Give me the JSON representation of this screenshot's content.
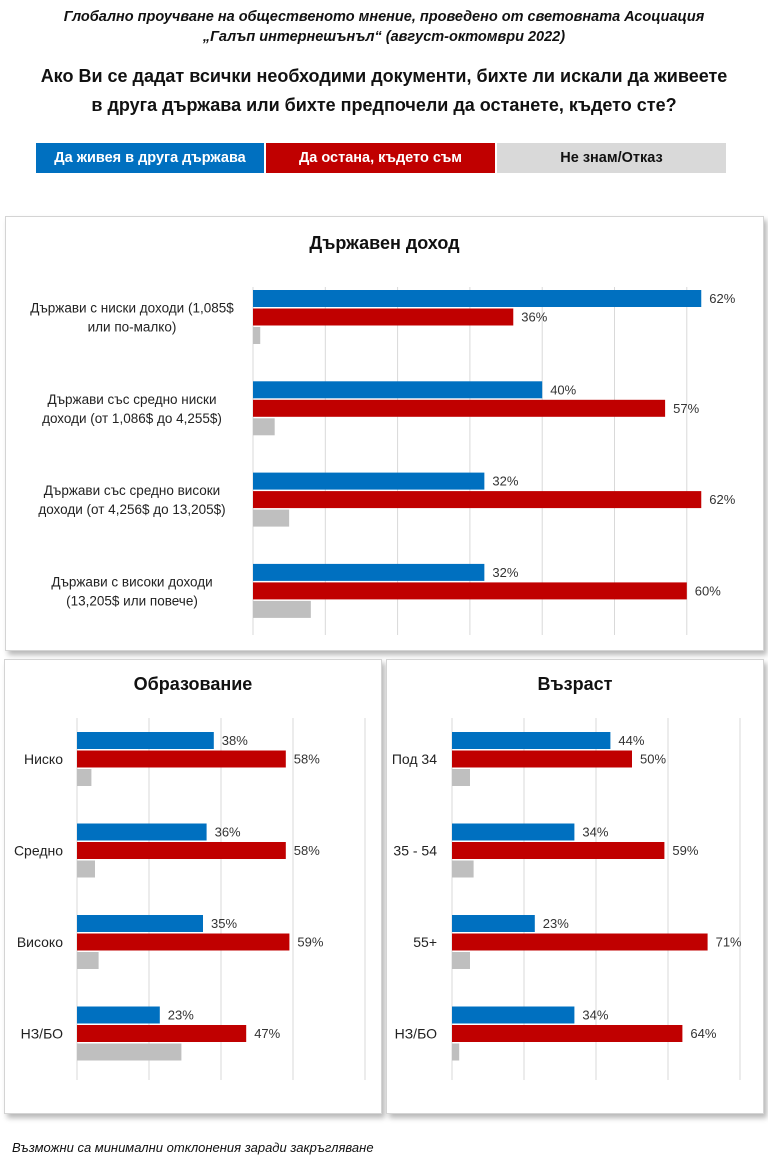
{
  "header": {
    "subtitle_line1": "Глобално проучване на общественото мнение, проведено от световната Асоциация",
    "subtitle_line2": "„Галъп интернешънъл“ (август-октомври 2022)",
    "question_line1": "Ако Ви се дадат всички необходими документи, бихте ли искали да живеете",
    "question_line2": "в друга държава или бихте предпочели да останете, където сте?"
  },
  "legend": [
    {
      "label": "Да живея в друга държава",
      "color": "#0070C0"
    },
    {
      "label": "Да остана, където съм",
      "color": "#C00000"
    },
    {
      "label": "Не знам/Отказ",
      "color": "#C8C8C8"
    }
  ],
  "colors": {
    "blue": "#0070C0",
    "red": "#C00000",
    "gray": "#BFBFBF",
    "grid": "#D9D9D9"
  },
  "footnote": "Възможни са минимални отклонения заради закръгляване",
  "chart_data": [
    {
      "type": "bar",
      "orientation": "horizontal",
      "title": "Държавен доход",
      "categories": [
        [
          "Държави с ниски доходи (1,085$",
          "или по-малко)"
        ],
        [
          "Държави със средно ниски",
          "доходи (от 1,086$ до 4,255$)"
        ],
        [
          "Държави със средно високи",
          "доходи (от 4,256$ до 13,205$)"
        ],
        [
          "Държави с високи доходи",
          "(13,205$ или повече)"
        ]
      ],
      "series": [
        {
          "name": "Да живея в друга държава",
          "values": [
            62,
            40,
            32,
            32
          ],
          "labels": [
            "62%",
            "40%",
            "32%",
            "32%"
          ]
        },
        {
          "name": "Да остана, където съм",
          "values": [
            36,
            57,
            62,
            60
          ],
          "labels": [
            "36%",
            "57%",
            "62%",
            "60%"
          ]
        },
        {
          "name": "Не знам/Отказ",
          "values": [
            1,
            3,
            5,
            8
          ],
          "labels": [
            "",
            "",
            "",
            ""
          ]
        }
      ],
      "xlim": [
        0,
        60
      ],
      "gridline_step": 10,
      "grid": true,
      "xlabel": "",
      "ylabel": ""
    },
    {
      "type": "bar",
      "orientation": "horizontal",
      "title": "Образование",
      "categories": [
        [
          "Ниско"
        ],
        [
          "Средно"
        ],
        [
          "Високо"
        ],
        [
          "НЗ/БО"
        ]
      ],
      "series": [
        {
          "name": "Да живея в друга държава",
          "values": [
            38,
            36,
            35,
            23
          ],
          "labels": [
            "38%",
            "36%",
            "35%",
            "23%"
          ]
        },
        {
          "name": "Да остана, където съм",
          "values": [
            58,
            58,
            59,
            47
          ],
          "labels": [
            "58%",
            "58%",
            "59%",
            "47%"
          ]
        },
        {
          "name": "Не знам/Отказ",
          "values": [
            4,
            5,
            6,
            29
          ],
          "labels": [
            "",
            "",
            "",
            ""
          ]
        }
      ],
      "xlim": [
        0,
        80
      ],
      "gridline_step": 20,
      "grid": true,
      "xlabel": "",
      "ylabel": ""
    },
    {
      "type": "bar",
      "orientation": "horizontal",
      "title": "Възраст",
      "categories": [
        [
          "Под 34"
        ],
        [
          "35 - 54"
        ],
        [
          "55+"
        ],
        [
          "НЗ/БО"
        ]
      ],
      "series": [
        {
          "name": "Да живея в друга държава",
          "values": [
            44,
            34,
            23,
            34
          ],
          "labels": [
            "44%",
            "34%",
            "23%",
            "34%"
          ]
        },
        {
          "name": "Да остана, където съм",
          "values": [
            50,
            59,
            71,
            64
          ],
          "labels": [
            "50%",
            "59%",
            "71%",
            "64%"
          ]
        },
        {
          "name": "Не знам/Отказ",
          "values": [
            5,
            6,
            5,
            2
          ],
          "labels": [
            "",
            "",
            "",
            ""
          ]
        }
      ],
      "xlim": [
        0,
        80
      ],
      "gridline_step": 20,
      "grid": true,
      "xlabel": "",
      "ylabel": ""
    }
  ]
}
